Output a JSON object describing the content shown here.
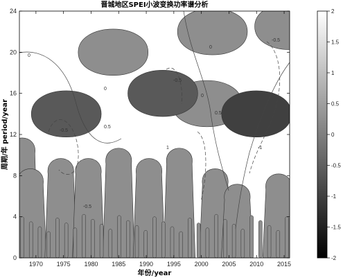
{
  "chart_data": {
    "type": "heatmap",
    "title": "晋城地区SPEI小波变换功率谱分析",
    "xlabel": "年份/year",
    "ylabel": "周期/年 period/year",
    "xlim": [
      1967,
      2016
    ],
    "ylim": [
      0,
      24
    ],
    "x_ticks": [
      "1970",
      "1975",
      "1980",
      "1985",
      "1990",
      "1995",
      "2000",
      "2005",
      "2010",
      "2015"
    ],
    "y_ticks": [
      "0",
      "4",
      "8",
      "12",
      "16",
      "20",
      "24"
    ],
    "colorbar": {
      "range": [
        -2,
        2
      ],
      "ticks": [
        "2",
        "1.5",
        "1",
        "0.5",
        "0",
        "-0.5",
        "-1",
        "-1.5",
        "-2"
      ],
      "colors": [
        "#000000",
        "#ffffff"
      ]
    },
    "contour_labels": [
      "0",
      "-0.5",
      "0.5",
      "1",
      "-1"
    ],
    "regions": [
      {
        "kind": "positive",
        "x_center": 1967.5,
        "y_center": 11.5,
        "value": 0.4
      },
      {
        "kind": "positive",
        "x_center": 1984,
        "y_center": 20,
        "value": 0.8
      },
      {
        "kind": "positive",
        "x_center": 2002,
        "y_center": 22,
        "value": 1.0
      },
      {
        "kind": "positive",
        "x_center": 2016,
        "y_center": 22.5,
        "value": 0.6
      },
      {
        "kind": "positive",
        "x_center": 2001,
        "y_center": 15,
        "value": 0.7
      },
      {
        "kind": "negative",
        "x_center": 1975.5,
        "y_center": 14,
        "value": -0.6
      },
      {
        "kind": "negative",
        "x_center": 1993,
        "y_center": 16,
        "value": -0.6
      },
      {
        "kind": "negative",
        "x_center": 2010,
        "y_center": 14,
        "value": -1.0
      },
      {
        "kind": "positive",
        "x_center": 1969,
        "y_center": 8.5,
        "value": 0.3
      },
      {
        "kind": "positive",
        "x_center": 1974.5,
        "y_center": 9.5,
        "value": 0.6
      },
      {
        "kind": "positive",
        "x_center": 1979.5,
        "y_center": 9.5,
        "value": 0.6
      },
      {
        "kind": "positive",
        "x_center": 1985,
        "y_center": 10.5,
        "value": 0.7
      },
      {
        "kind": "positive",
        "x_center": 1990.5,
        "y_center": 9.5,
        "value": 0.5
      },
      {
        "kind": "positive",
        "x_center": 1996,
        "y_center": 10.5,
        "value": 0.7
      },
      {
        "kind": "positive",
        "x_center": 2002.5,
        "y_center": 8.5,
        "value": 0.8
      },
      {
        "kind": "positive",
        "x_center": 2006.5,
        "y_center": 7.0,
        "value": 0.5
      },
      {
        "kind": "positive",
        "x_center": 2014,
        "y_center": 8.0,
        "value": 0.6
      }
    ]
  }
}
